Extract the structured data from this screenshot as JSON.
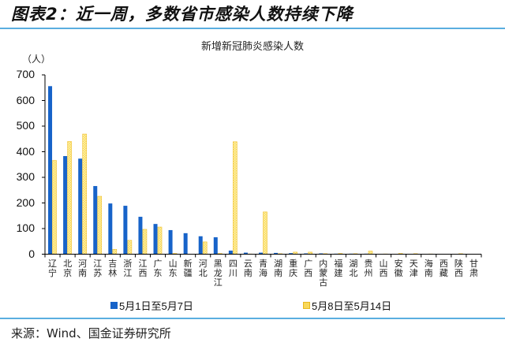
{
  "header": {
    "title": "图表2：近一周，多数省市感染人数持续下降",
    "source": "来源：Wind、国金证券研究所"
  },
  "chart_data": {
    "type": "bar",
    "title": "新增新冠肺炎感染人数",
    "ylabel": "（人）",
    "xlabel": "",
    "ylim": [
      0,
      700
    ],
    "yticks": [
      0,
      100,
      200,
      300,
      400,
      500,
      600,
      700
    ],
    "grid": false,
    "legend_position": "bottom",
    "categories": [
      "辽宁",
      "北京",
      "河南",
      "江苏",
      "吉林",
      "浙江",
      "江西",
      "广东",
      "山东",
      "新疆",
      "河北",
      "黑龙江",
      "四川",
      "云南",
      "青海",
      "湖南",
      "重庆",
      "广西",
      "内蒙古",
      "福建",
      "湖北",
      "贵州",
      "山西",
      "安徽",
      "天津",
      "海南",
      "西藏",
      "陕西",
      "甘肃"
    ],
    "series": [
      {
        "name": "5月1日至5月7日",
        "color": "#1763c9",
        "values": [
          656,
          383,
          373,
          266,
          198,
          189,
          146,
          118,
          94,
          82,
          70,
          66,
          14,
          6,
          6,
          5,
          4,
          3,
          3,
          2,
          2,
          2,
          1,
          1,
          1,
          0,
          0,
          0,
          0
        ]
      },
      {
        "name": "5月8日至5月14日",
        "color": "#f5c842",
        "values": [
          366,
          440,
          469,
          226,
          19,
          54,
          97,
          106,
          3,
          0,
          48,
          3,
          439,
          1,
          165,
          2,
          8,
          8,
          2,
          3,
          2,
          12,
          1,
          3,
          2,
          1,
          0,
          2,
          0
        ]
      }
    ]
  }
}
